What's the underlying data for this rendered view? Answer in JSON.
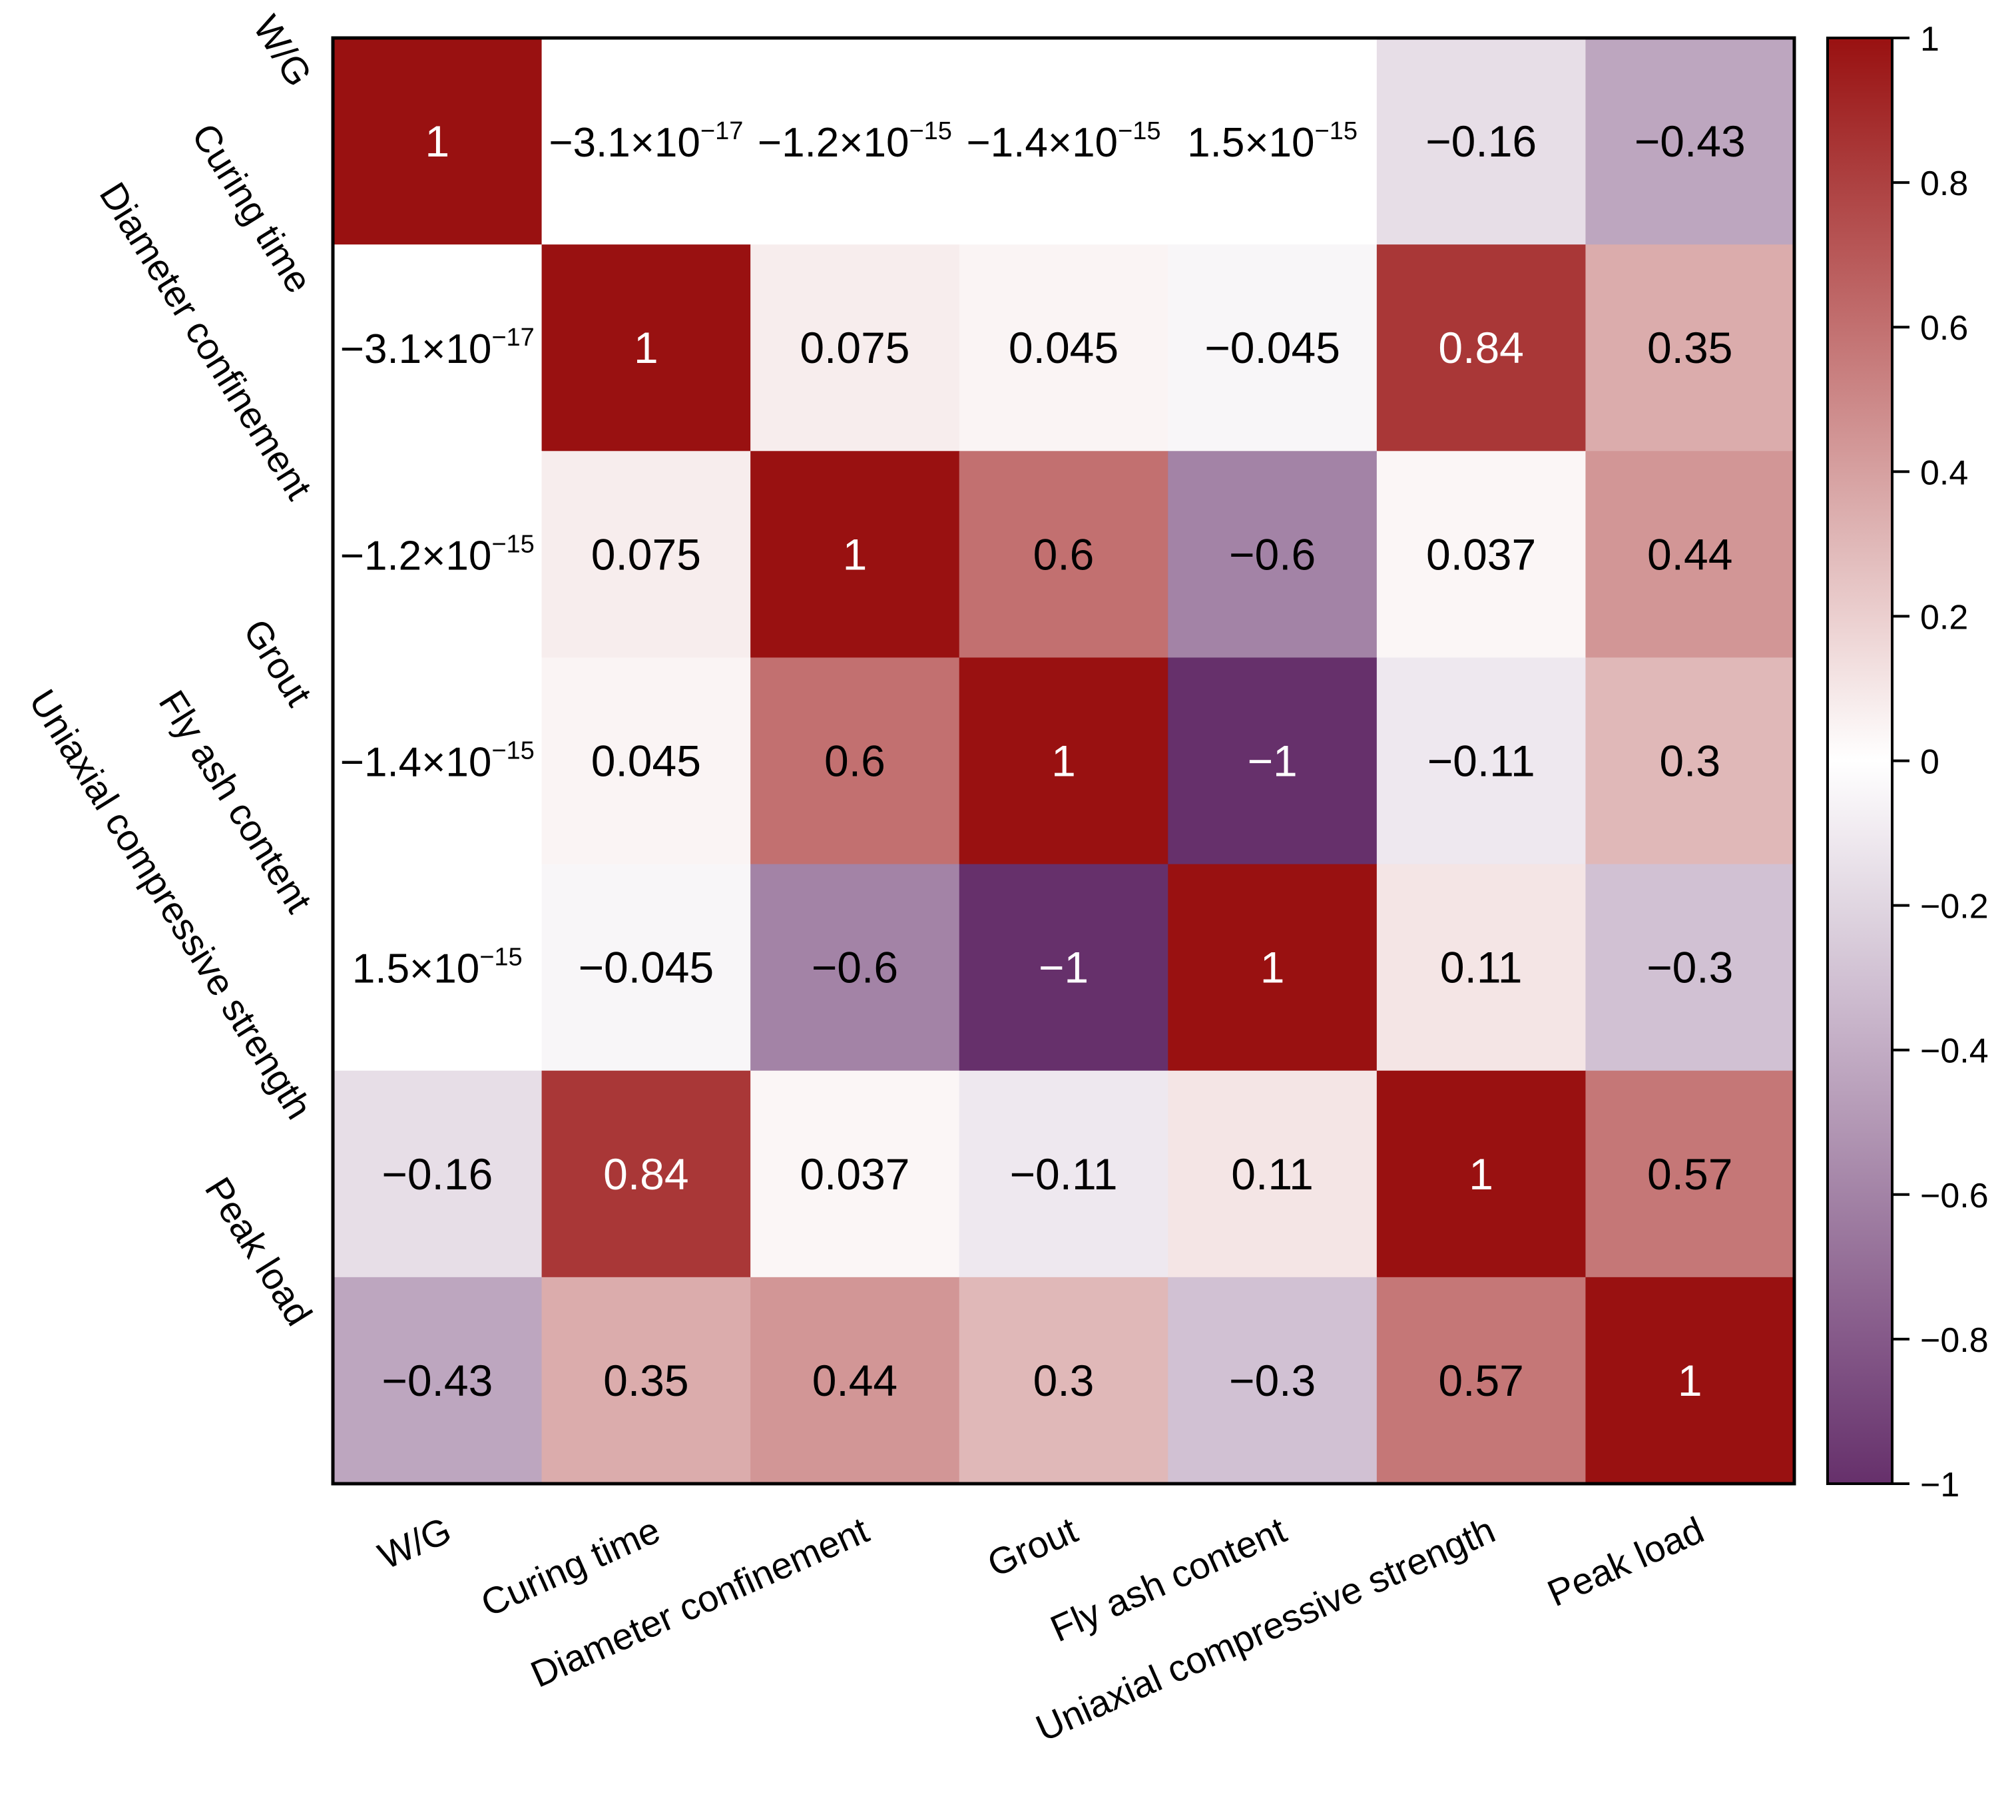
{
  "chart_data": {
    "type": "heatmap",
    "title": "",
    "variables": [
      "W/G",
      "Curing time",
      "Diameter  confinement",
      "Grout",
      "Fly ash content",
      "Uniaxial compressive strength",
      "Peak load"
    ],
    "values": [
      [
        1,
        -3.1e-17,
        -1.2e-15,
        -1.4e-15,
        1.5e-15,
        -0.16,
        -0.43
      ],
      [
        -3.1e-17,
        1,
        0.075,
        0.045,
        -0.045,
        0.84,
        0.35
      ],
      [
        -1.2e-15,
        0.075,
        1,
        0.6,
        -0.6,
        0.037,
        0.44
      ],
      [
        -1.4e-15,
        0.045,
        0.6,
        1,
        -1,
        -0.11,
        0.3
      ],
      [
        1.5e-15,
        -0.045,
        -0.6,
        -1,
        1,
        0.11,
        -0.3
      ],
      [
        -0.16,
        0.84,
        0.037,
        -0.11,
        0.11,
        1,
        0.57
      ],
      [
        -0.43,
        0.35,
        0.44,
        0.3,
        -0.3,
        0.57,
        1
      ]
    ],
    "labels": [
      [
        {
          "t": "1"
        },
        {
          "t": "−3.1×10",
          "e": "−17"
        },
        {
          "t": "−1.2×10",
          "e": "−15"
        },
        {
          "t": "−1.4×10",
          "e": "−15"
        },
        {
          "t": "1.5×10",
          "e": "−15"
        },
        {
          "t": "−0.16"
        },
        {
          "t": "−0.43"
        }
      ],
      [
        {
          "t": "−3.1×10",
          "e": "−17"
        },
        {
          "t": "1"
        },
        {
          "t": "0.075"
        },
        {
          "t": "0.045"
        },
        {
          "t": "−0.045"
        },
        {
          "t": "0.84"
        },
        {
          "t": "0.35"
        }
      ],
      [
        {
          "t": "−1.2×10",
          "e": "−15"
        },
        {
          "t": "0.075"
        },
        {
          "t": "1"
        },
        {
          "t": "0.6"
        },
        {
          "t": "−0.6"
        },
        {
          "t": "0.037"
        },
        {
          "t": "0.44"
        }
      ],
      [
        {
          "t": "−1.4×10",
          "e": "−15"
        },
        {
          "t": "0.045"
        },
        {
          "t": "0.6"
        },
        {
          "t": "1"
        },
        {
          "t": "−1"
        },
        {
          "t": "−0.11"
        },
        {
          "t": "0.3"
        }
      ],
      [
        {
          "t": "1.5×10",
          "e": "−15"
        },
        {
          "t": "−0.045"
        },
        {
          "t": "−0.6"
        },
        {
          "t": "−1"
        },
        {
          "t": "1"
        },
        {
          "t": "0.11"
        },
        {
          "t": "−0.3"
        }
      ],
      [
        {
          "t": "−0.16"
        },
        {
          "t": "0.84"
        },
        {
          "t": "0.037"
        },
        {
          "t": "−0.11"
        },
        {
          "t": "0.11"
        },
        {
          "t": "1"
        },
        {
          "t": "0.57"
        }
      ],
      [
        {
          "t": "−0.43"
        },
        {
          "t": "0.35"
        },
        {
          "t": "0.44"
        },
        {
          "t": "0.3"
        },
        {
          "t": "−0.3"
        },
        {
          "t": "0.57"
        },
        {
          "t": "1"
        }
      ]
    ],
    "colorbar": {
      "range": [
        -1,
        1
      ],
      "ticks": [
        1,
        0.8,
        0.6,
        0.4,
        0.2,
        0,
        -0.2,
        -0.4,
        -0.6,
        -0.8,
        -1
      ],
      "tick_labels": [
        "1",
        "0.8",
        "0.6",
        "0.4",
        "0.2",
        "0",
        "−0.2",
        "−0.4",
        "−0.6",
        "−0.8",
        "−1"
      ],
      "colors": {
        "positive": "#991111",
        "zero": "#ffffff",
        "negative": "#66306b"
      }
    }
  }
}
